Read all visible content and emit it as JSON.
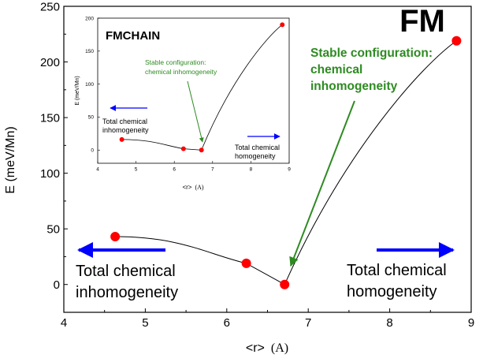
{
  "chart_data": [
    {
      "type": "scatter",
      "title": "FM",
      "xlabel": "<r>",
      "xunit": "(A)",
      "ylabel": "E (meV/Mn)",
      "xlim": [
        4,
        9
      ],
      "ylim": [
        -25,
        250
      ],
      "xticks": [
        "4",
        "5",
        "6",
        "7",
        "8",
        "9"
      ],
      "yticks": [
        "0",
        "50",
        "100",
        "150",
        "200",
        "250"
      ],
      "series": [
        {
          "x": [
            4.63,
            6.24,
            6.71,
            8.82
          ],
          "y": [
            43,
            19,
            0,
            219
          ]
        }
      ],
      "annotations": {
        "stable": [
          "Stable configuration:",
          "chemical",
          "inhomogeneity"
        ],
        "left": [
          "Total chemical",
          "inhomogeneity"
        ],
        "right": [
          "Total chemical",
          "homogeneity"
        ]
      },
      "colors": {
        "points": "#ff0000",
        "arrow_blue": "#0000ff",
        "arrow_green": "#2e8b22",
        "curve": "#000000"
      }
    },
    {
      "type": "scatter",
      "title": "FMCHAIN",
      "xlabel": "<r>",
      "xunit": "(A)",
      "ylabel": "E (meV/Mn)",
      "xlim": [
        4,
        9
      ],
      "ylim": [
        -20,
        200
      ],
      "xticks": [
        "4",
        "5",
        "6",
        "7",
        "8",
        "9"
      ],
      "yticks": [
        "0",
        "50",
        "100",
        "150",
        "200"
      ],
      "series": [
        {
          "x": [
            4.63,
            6.24,
            6.71,
            8.82
          ],
          "y": [
            16,
            2,
            0,
            190
          ]
        }
      ],
      "annotations": {
        "stable": [
          "Stable configuration:",
          "chemical inhomogeneity"
        ],
        "left": [
          "Total chemical",
          "inhomogeneity"
        ],
        "right": [
          "Total chemical",
          "homogeneity"
        ]
      },
      "colors": {
        "points": "#ff0000",
        "arrow_blue": "#0000ff",
        "arrow_green": "#2e8b22",
        "curve": "#000000"
      }
    }
  ]
}
